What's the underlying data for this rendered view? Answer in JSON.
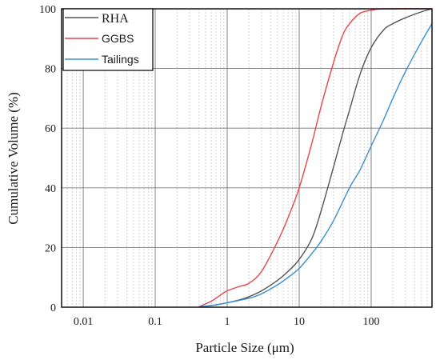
{
  "chart_data": {
    "type": "line",
    "title": "",
    "xlabel": "Particle Size (μm)",
    "ylabel": "Cumulative Volume (%)",
    "x_scale": "log",
    "xlim": [
      0.005,
      700
    ],
    "ylim": [
      0,
      100
    ],
    "x_ticks": [
      {
        "value": 0.01,
        "label": "0.01"
      },
      {
        "value": 0.1,
        "label": "0.1"
      },
      {
        "value": 1,
        "label": "1"
      },
      {
        "value": 10,
        "label": "10"
      },
      {
        "value": 100,
        "label": "100"
      }
    ],
    "y_ticks": [
      {
        "value": 0,
        "label": "0"
      },
      {
        "value": 20,
        "label": "20"
      },
      {
        "value": 40,
        "label": "40"
      },
      {
        "value": 60,
        "label": "60"
      },
      {
        "value": 80,
        "label": "80"
      },
      {
        "value": 100,
        "label": "100"
      }
    ],
    "grid": true,
    "legend_position": "top-left",
    "series": [
      {
        "name": "RHA",
        "color": "#555555",
        "points": [
          [
            0.5,
            0.3
          ],
          [
            0.7,
            0.8
          ],
          [
            1,
            1.5
          ],
          [
            1.5,
            2.5
          ],
          [
            2,
            3.5
          ],
          [
            3,
            5.5
          ],
          [
            5,
            9
          ],
          [
            7,
            12
          ],
          [
            10,
            16
          ],
          [
            15,
            23
          ],
          [
            20,
            32
          ],
          [
            30,
            47
          ],
          [
            40,
            58
          ],
          [
            50,
            66
          ],
          [
            70,
            78
          ],
          [
            100,
            87
          ],
          [
            150,
            93
          ],
          [
            200,
            95
          ],
          [
            300,
            97
          ],
          [
            500,
            99
          ],
          [
            700,
            100
          ]
        ]
      },
      {
        "name": "GGBS",
        "color": "#e8454a",
        "points": [
          [
            0.4,
            0.1
          ],
          [
            0.6,
            2
          ],
          [
            0.8,
            4
          ],
          [
            1,
            5.5
          ],
          [
            1.5,
            7
          ],
          [
            2,
            8
          ],
          [
            3,
            12
          ],
          [
            5,
            22
          ],
          [
            7,
            30
          ],
          [
            10,
            40
          ],
          [
            15,
            55
          ],
          [
            20,
            67
          ],
          [
            30,
            82
          ],
          [
            40,
            91
          ],
          [
            50,
            95
          ],
          [
            70,
            98.5
          ],
          [
            100,
            99.5
          ],
          [
            150,
            100
          ],
          [
            700,
            100
          ]
        ]
      },
      {
        "name": "Tailings",
        "color": "#3a8fd0",
        "points": [
          [
            0.4,
            0.1
          ],
          [
            0.7,
            0.8
          ],
          [
            1,
            1.5
          ],
          [
            2,
            3
          ],
          [
            3,
            4.5
          ],
          [
            5,
            7.5
          ],
          [
            7,
            10
          ],
          [
            10,
            13
          ],
          [
            15,
            18
          ],
          [
            20,
            22
          ],
          [
            30,
            29
          ],
          [
            50,
            40
          ],
          [
            70,
            46
          ],
          [
            100,
            54
          ],
          [
            150,
            63
          ],
          [
            200,
            70
          ],
          [
            300,
            79
          ],
          [
            500,
            89
          ],
          [
            700,
            95
          ]
        ]
      }
    ]
  }
}
